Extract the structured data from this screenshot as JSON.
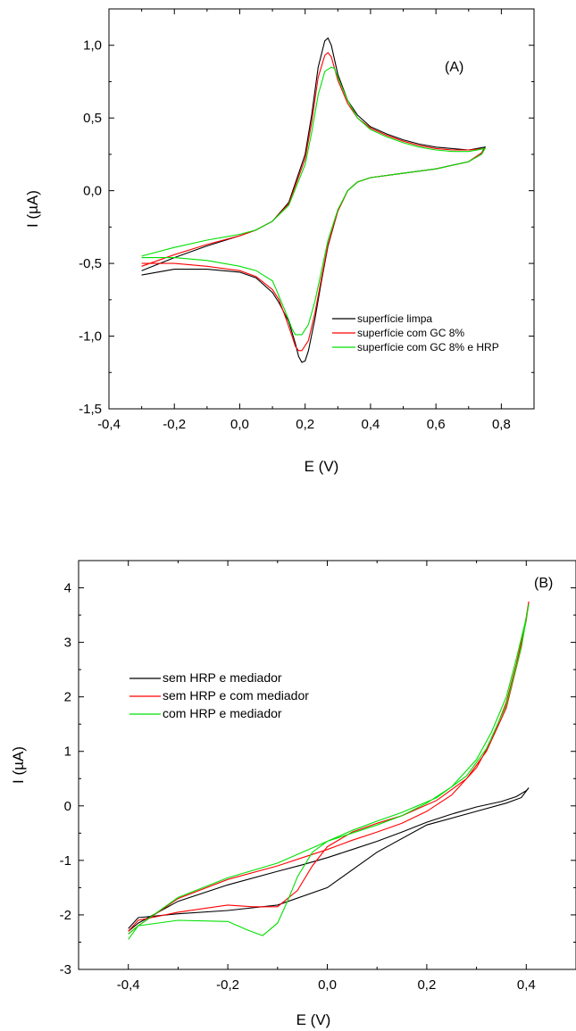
{
  "chart_data": [
    {
      "type": "line",
      "panel_label": "(A)",
      "xlabel": "E (V)",
      "ylabel": "I (µA)",
      "xlim": [
        -0.4,
        0.9
      ],
      "ylim": [
        -1.5,
        1.25
      ],
      "xticks": [
        -0.4,
        -0.2,
        0.0,
        0.2,
        0.4,
        0.6,
        0.8
      ],
      "xtick_labels": [
        "-0,4",
        "-0,2",
        "0,0",
        "0,2",
        "0,4",
        "0,6",
        "0,8"
      ],
      "yticks": [
        -1.5,
        -1.0,
        -0.5,
        0.0,
        0.5,
        1.0
      ],
      "ytick_labels": [
        "-1,5",
        "-1,0",
        "-0,5",
        "0,0",
        "0,5",
        "1,0"
      ],
      "legend_position": "bottom-right",
      "series": [
        {
          "name": "superfície limpa",
          "color": "#000000",
          "x": [
            -0.3,
            -0.2,
            -0.1,
            0.0,
            0.05,
            0.1,
            0.15,
            0.2,
            0.22,
            0.24,
            0.26,
            0.27,
            0.28,
            0.3,
            0.33,
            0.36,
            0.4,
            0.45,
            0.5,
            0.55,
            0.6,
            0.65,
            0.7,
            0.75,
            0.74,
            0.7,
            0.6,
            0.5,
            0.4,
            0.36,
            0.33,
            0.3,
            0.27,
            0.25,
            0.23,
            0.21,
            0.2,
            0.19,
            0.18,
            0.17,
            0.15,
            0.12,
            0.1,
            0.05,
            0.0,
            -0.1,
            -0.2,
            -0.3
          ],
          "y": [
            -0.55,
            -0.46,
            -0.38,
            -0.31,
            -0.27,
            -0.21,
            -0.08,
            0.25,
            0.52,
            0.85,
            1.03,
            1.05,
            1.0,
            0.8,
            0.62,
            0.52,
            0.44,
            0.39,
            0.35,
            0.32,
            0.3,
            0.29,
            0.28,
            0.3,
            0.26,
            0.2,
            0.15,
            0.12,
            0.09,
            0.06,
            0.0,
            -0.14,
            -0.38,
            -0.62,
            -0.88,
            -1.1,
            -1.17,
            -1.18,
            -1.14,
            -1.05,
            -0.9,
            -0.77,
            -0.7,
            -0.6,
            -0.56,
            -0.54,
            -0.54,
            -0.58
          ]
        },
        {
          "name": "superfície com GC 8%",
          "color": "#ff0000",
          "x": [
            -0.3,
            -0.2,
            -0.1,
            0.0,
            0.05,
            0.1,
            0.15,
            0.2,
            0.22,
            0.24,
            0.26,
            0.27,
            0.28,
            0.3,
            0.33,
            0.36,
            0.4,
            0.45,
            0.5,
            0.55,
            0.6,
            0.65,
            0.7,
            0.75,
            0.74,
            0.7,
            0.6,
            0.5,
            0.4,
            0.36,
            0.33,
            0.3,
            0.27,
            0.25,
            0.23,
            0.21,
            0.19,
            0.18,
            0.17,
            0.16,
            0.14,
            0.12,
            0.1,
            0.05,
            0.0,
            -0.1,
            -0.2,
            -0.3
          ],
          "y": [
            -0.52,
            -0.44,
            -0.37,
            -0.31,
            -0.27,
            -0.21,
            -0.09,
            0.22,
            0.47,
            0.78,
            0.93,
            0.95,
            0.92,
            0.76,
            0.6,
            0.5,
            0.43,
            0.38,
            0.34,
            0.31,
            0.29,
            0.28,
            0.28,
            0.29,
            0.26,
            0.2,
            0.15,
            0.12,
            0.09,
            0.06,
            0.0,
            -0.14,
            -0.37,
            -0.6,
            -0.84,
            -1.03,
            -1.1,
            -1.1,
            -1.07,
            -1.0,
            -0.87,
            -0.75,
            -0.68,
            -0.59,
            -0.55,
            -0.52,
            -0.5,
            -0.5
          ]
        },
        {
          "name": "superfície com GC 8% e HRP",
          "color": "#00e000",
          "x": [
            -0.3,
            -0.2,
            -0.1,
            0.0,
            0.05,
            0.1,
            0.15,
            0.2,
            0.22,
            0.24,
            0.26,
            0.28,
            0.29,
            0.3,
            0.33,
            0.36,
            0.4,
            0.45,
            0.5,
            0.55,
            0.6,
            0.65,
            0.7,
            0.75,
            0.74,
            0.7,
            0.6,
            0.5,
            0.4,
            0.36,
            0.33,
            0.3,
            0.27,
            0.25,
            0.23,
            0.21,
            0.19,
            0.17,
            0.16,
            0.15,
            0.13,
            0.11,
            0.1,
            0.05,
            0.0,
            -0.1,
            -0.2,
            -0.3
          ],
          "y": [
            -0.45,
            -0.39,
            -0.34,
            -0.3,
            -0.27,
            -0.21,
            -0.1,
            0.18,
            0.4,
            0.66,
            0.82,
            0.85,
            0.84,
            0.78,
            0.62,
            0.5,
            0.42,
            0.37,
            0.33,
            0.3,
            0.28,
            0.27,
            0.27,
            0.29,
            0.25,
            0.2,
            0.15,
            0.12,
            0.09,
            0.06,
            0.0,
            -0.13,
            -0.34,
            -0.55,
            -0.76,
            -0.92,
            -0.99,
            -0.99,
            -0.95,
            -0.89,
            -0.78,
            -0.67,
            -0.62,
            -0.55,
            -0.52,
            -0.48,
            -0.46,
            -0.46
          ]
        }
      ]
    },
    {
      "type": "line",
      "panel_label": "(B)",
      "xlabel": "E (V)",
      "ylabel": "I (µA)",
      "xlim": [
        -0.5,
        0.5
      ],
      "ylim": [
        -3,
        4.5
      ],
      "xticks": [
        -0.4,
        -0.2,
        0.0,
        0.2,
        0.4
      ],
      "xtick_labels": [
        "-0,4",
        "-0,2",
        "0,0",
        "0,2",
        "0,4"
      ],
      "yticks": [
        -3,
        -2,
        -1,
        0,
        1,
        2,
        3,
        4
      ],
      "ytick_labels": [
        "-3",
        "-2",
        "-1",
        "0",
        "1",
        "2",
        "3",
        "4"
      ],
      "legend_position": "middle-left",
      "series": [
        {
          "name": "sem HRP e mediador",
          "color": "#000000",
          "x": [
            -0.4,
            -0.38,
            -0.3,
            -0.2,
            -0.1,
            -0.05,
            0.0,
            0.05,
            0.1,
            0.15,
            0.2,
            0.25,
            0.3,
            0.35,
            0.38,
            0.4,
            0.405,
            0.39,
            0.36,
            0.3,
            0.2,
            0.1,
            0.0,
            -0.1,
            -0.2,
            -0.3,
            -0.38,
            -0.4
          ],
          "y": [
            -2.3,
            -2.15,
            -1.75,
            -1.45,
            -1.2,
            -1.08,
            -0.95,
            -0.8,
            -0.65,
            -0.48,
            -0.3,
            -0.15,
            -0.02,
            0.08,
            0.17,
            0.28,
            0.33,
            0.15,
            0.05,
            -0.1,
            -0.35,
            -0.85,
            -1.5,
            -1.82,
            -1.92,
            -1.98,
            -2.05,
            -2.25
          ]
        },
        {
          "name": "sem HRP e com mediador",
          "color": "#ff0000",
          "x": [
            -0.4,
            -0.38,
            -0.3,
            -0.2,
            -0.1,
            -0.05,
            0.0,
            0.05,
            0.1,
            0.15,
            0.2,
            0.25,
            0.3,
            0.33,
            0.36,
            0.38,
            0.4,
            0.405,
            0.39,
            0.36,
            0.32,
            0.28,
            0.22,
            0.15,
            0.1,
            0.05,
            0.0,
            -0.03,
            -0.06,
            -0.1,
            -0.15,
            -0.2,
            -0.3,
            -0.38,
            -0.4
          ],
          "y": [
            -2.35,
            -2.2,
            -1.7,
            -1.35,
            -1.1,
            -0.95,
            -0.8,
            -0.63,
            -0.48,
            -0.32,
            -0.1,
            0.2,
            0.7,
            1.2,
            1.9,
            2.6,
            3.4,
            3.75,
            2.9,
            1.8,
            1.0,
            0.5,
            0.1,
            -0.18,
            -0.32,
            -0.48,
            -0.75,
            -1.1,
            -1.55,
            -1.85,
            -1.85,
            -1.82,
            -1.95,
            -2.1,
            -2.3
          ]
        },
        {
          "name": "com HRP e mediador",
          "color": "#00e000",
          "x": [
            -0.4,
            -0.38,
            -0.3,
            -0.2,
            -0.1,
            -0.05,
            0.0,
            0.05,
            0.1,
            0.15,
            0.2,
            0.25,
            0.3,
            0.33,
            0.36,
            0.38,
            0.4,
            0.405,
            0.39,
            0.36,
            0.32,
            0.28,
            0.22,
            0.15,
            0.1,
            0.05,
            0.0,
            -0.03,
            -0.06,
            -0.08,
            -0.1,
            -0.13,
            -0.16,
            -0.2,
            -0.3,
            -0.38,
            -0.4
          ],
          "y": [
            -2.45,
            -2.2,
            -1.68,
            -1.32,
            -1.05,
            -0.85,
            -0.65,
            -0.5,
            -0.35,
            -0.18,
            0.05,
            0.35,
            0.85,
            1.35,
            2.0,
            2.7,
            3.45,
            3.7,
            2.9,
            1.85,
            1.05,
            0.55,
            0.15,
            -0.12,
            -0.28,
            -0.45,
            -0.65,
            -0.85,
            -1.3,
            -1.75,
            -2.15,
            -2.38,
            -2.28,
            -2.12,
            -2.1,
            -2.2,
            -2.35
          ]
        }
      ]
    }
  ]
}
